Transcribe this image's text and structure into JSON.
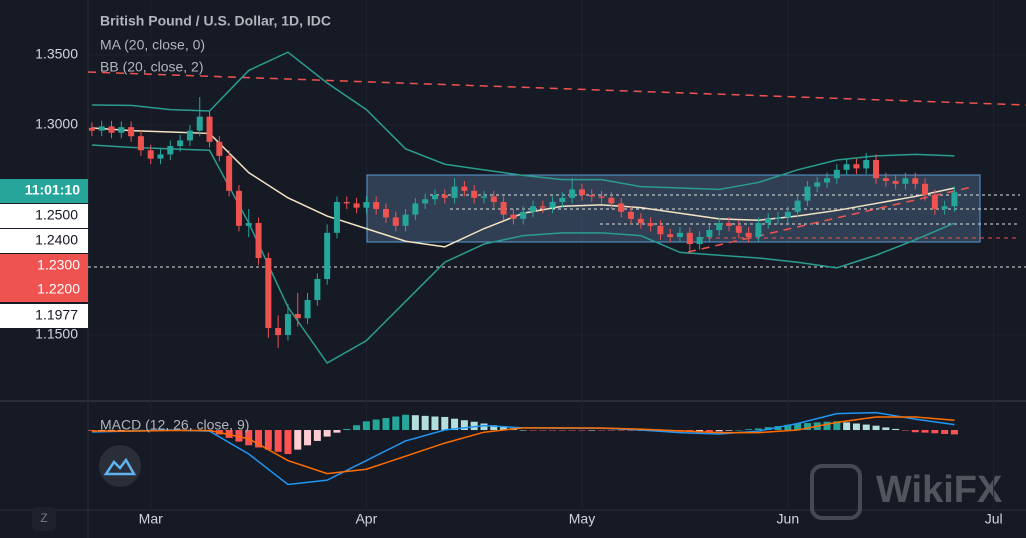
{
  "chart_data": {
    "type": "candlestick",
    "title": "British Pound / U.S. Dollar, 1D, IDC",
    "open": [
      1.298,
      1.296,
      1.299,
      1.2945,
      1.2985,
      1.292,
      1.282,
      1.276,
      1.279,
      1.285,
      1.289,
      1.296,
      1.306,
      1.288,
      1.278,
      1.253,
      1.228,
      1.23,
      1.205,
      1.155,
      1.15,
      1.165,
      1.162,
      1.175,
      1.19,
      1.223,
      1.245,
      1.244,
      1.241,
      1.245,
      1.24,
      1.234,
      1.228,
      1.236,
      1.244,
      1.247,
      1.25,
      1.248,
      1.256,
      1.253,
      1.248,
      1.249,
      1.245,
      1.236,
      1.233,
      1.238,
      1.242,
      1.241,
      1.245,
      1.248,
      1.254,
      1.25,
      1.249,
      1.248,
      1.244,
      1.238,
      1.233,
      1.23,
      1.228,
      1.222,
      1.22,
      1.223,
      1.215,
      1.22,
      1.225,
      1.23,
      1.228,
      1.223,
      1.22,
      1.23,
      1.233,
      1.234,
      1.238,
      1.246,
      1.256,
      1.259,
      1.262,
      1.268,
      1.272,
      1.269,
      1.275,
      1.262,
      1.26,
      1.258,
      1.262,
      1.258,
      1.25,
      1.24,
      1.242
    ],
    "high": [
      1.302,
      1.303,
      1.303,
      1.3025,
      1.3025,
      1.296,
      1.286,
      1.283,
      1.289,
      1.293,
      1.3,
      1.32,
      1.31,
      1.292,
      1.282,
      1.257,
      1.24,
      1.234,
      1.209,
      1.164,
      1.172,
      1.18,
      1.18,
      1.194,
      1.229,
      1.249,
      1.249,
      1.248,
      1.249,
      1.249,
      1.244,
      1.238,
      1.24,
      1.248,
      1.251,
      1.254,
      1.254,
      1.262,
      1.26,
      1.257,
      1.253,
      1.253,
      1.249,
      1.24,
      1.242,
      1.246,
      1.246,
      1.249,
      1.252,
      1.262,
      1.258,
      1.254,
      1.253,
      1.252,
      1.248,
      1.242,
      1.237,
      1.234,
      1.232,
      1.226,
      1.227,
      1.227,
      1.224,
      1.229,
      1.234,
      1.234,
      1.232,
      1.227,
      1.234,
      1.237,
      1.238,
      1.242,
      1.25,
      1.26,
      1.263,
      1.266,
      1.272,
      1.276,
      1.276,
      1.28,
      1.279,
      1.266,
      1.264,
      1.266,
      1.266,
      1.262,
      1.254,
      1.246,
      1.256
    ],
    "low": [
      1.292,
      1.292,
      1.2905,
      1.2905,
      1.288,
      1.278,
      1.272,
      1.272,
      1.275,
      1.281,
      1.285,
      1.292,
      1.284,
      1.274,
      1.249,
      1.224,
      1.22,
      1.2,
      1.148,
      1.1409,
      1.146,
      1.156,
      1.158,
      1.171,
      1.186,
      1.219,
      1.24,
      1.237,
      1.237,
      1.236,
      1.23,
      1.224,
      1.224,
      1.232,
      1.24,
      1.243,
      1.244,
      1.244,
      1.249,
      1.244,
      1.244,
      1.241,
      1.232,
      1.229,
      1.229,
      1.234,
      1.237,
      1.237,
      1.241,
      1.244,
      1.246,
      1.245,
      1.244,
      1.24,
      1.234,
      1.229,
      1.226,
      1.224,
      1.218,
      1.216,
      1.216,
      1.208,
      1.211,
      1.216,
      1.221,
      1.224,
      1.219,
      1.216,
      1.216,
      1.226,
      1.229,
      1.23,
      1.234,
      1.242,
      1.252,
      1.255,
      1.258,
      1.264,
      1.265,
      1.265,
      1.258,
      1.256,
      1.254,
      1.254,
      1.254,
      1.246,
      1.236,
      1.236,
      1.238
    ],
    "close": [
      1.296,
      1.299,
      1.2945,
      1.2985,
      1.292,
      1.282,
      1.276,
      1.279,
      1.285,
      1.289,
      1.296,
      1.306,
      1.288,
      1.278,
      1.253,
      1.228,
      1.23,
      1.205,
      1.155,
      1.15,
      1.165,
      1.162,
      1.175,
      1.19,
      1.223,
      1.245,
      1.244,
      1.241,
      1.245,
      1.24,
      1.234,
      1.228,
      1.236,
      1.244,
      1.247,
      1.25,
      1.248,
      1.256,
      1.253,
      1.248,
      1.249,
      1.245,
      1.236,
      1.233,
      1.238,
      1.242,
      1.241,
      1.245,
      1.248,
      1.254,
      1.25,
      1.249,
      1.248,
      1.244,
      1.238,
      1.233,
      1.23,
      1.228,
      1.222,
      1.22,
      1.223,
      1.215,
      1.22,
      1.225,
      1.23,
      1.228,
      1.223,
      1.22,
      1.23,
      1.233,
      1.234,
      1.238,
      1.246,
      1.256,
      1.259,
      1.262,
      1.268,
      1.272,
      1.269,
      1.275,
      1.262,
      1.26,
      1.258,
      1.262,
      1.258,
      1.25,
      1.24,
      1.242,
      1.252
    ],
    "up_color": "#26a69a",
    "down_color": "#ef5350",
    "xlim": [
      -0.4,
      95.3
    ],
    "xticks": [
      {
        "value": 6,
        "label": "Mar"
      },
      {
        "value": 28,
        "label": "Apr"
      },
      {
        "value": 50,
        "label": "May"
      },
      {
        "value": 71,
        "label": "Jun"
      },
      {
        "value": 92,
        "label": "Jul"
      }
    ],
    "ylim": [
      1.1036,
      1.3893
    ],
    "yticks": [
      {
        "value": 1.35,
        "label": "1.3500"
      },
      {
        "value": 1.3,
        "label": "1.3000"
      },
      {
        "value": 1.15,
        "label": "1.1500"
      }
    ],
    "ma": {
      "name": "MA (20, close, 0)",
      "color": "#f3e5c4",
      "x": [
        0,
        4,
        8,
        12,
        16,
        20,
        24,
        28,
        32,
        36,
        40,
        44,
        48,
        52,
        56,
        60,
        64,
        68,
        72,
        76,
        80,
        84,
        88
      ],
      "values": [
        1.2979,
        1.296,
        1.295,
        1.294,
        1.266,
        1.248,
        1.235,
        1.226,
        1.217,
        1.213,
        1.226,
        1.237,
        1.242,
        1.243,
        1.241,
        1.237,
        1.233,
        1.232,
        1.235,
        1.239,
        1.244,
        1.249,
        1.255
      ]
    },
    "bb": {
      "name": "BB (20, close, 2)",
      "color": "#2a9d8f",
      "x": [
        0,
        4,
        8,
        12,
        16,
        20,
        24,
        28,
        32,
        36,
        40,
        44,
        48,
        52,
        56,
        60,
        64,
        68,
        72,
        76,
        80,
        84,
        88
      ],
      "upper": [
        1.3143,
        1.314,
        1.311,
        1.31,
        1.339,
        1.352,
        1.33,
        1.311,
        1.283,
        1.272,
        1.268,
        1.264,
        1.261,
        1.261,
        1.256,
        1.255,
        1.254,
        1.259,
        1.268,
        1.275,
        1.278,
        1.279,
        1.278
      ],
      "lower": [
        1.2857,
        1.284,
        1.283,
        1.282,
        1.23,
        1.17,
        1.13,
        1.146,
        1.174,
        1.202,
        1.215,
        1.221,
        1.223,
        1.223,
        1.221,
        1.209,
        1.207,
        1.205,
        1.202,
        1.198,
        1.207,
        1.218,
        1.23
      ]
    },
    "macd": {
      "name": "MACD (12, 26, close, 9)",
      "ylim": [
        -0.0367,
        0.0124
      ],
      "histogram": [
        -0.0004,
        -0.0003,
        -0.0002,
        -0.0001,
        0.0,
        0.0001,
        0.0001,
        0.0002,
        0.0002,
        0.0001,
        -0.0001,
        -0.0002,
        -0.0003,
        -0.002,
        -0.0036,
        -0.0053,
        -0.007,
        -0.008,
        -0.009,
        -0.01,
        -0.011,
        -0.009,
        -0.007,
        -0.005,
        -0.003,
        -0.0012,
        0.0005,
        0.0022,
        0.004,
        0.0048,
        0.0055,
        0.0062,
        0.007,
        0.0068,
        0.0065,
        0.0062,
        0.006,
        0.0052,
        0.0045,
        0.0038,
        0.003,
        0.0022,
        0.0015,
        0.0008,
        0.0,
        -0.0001,
        -0.0001,
        -0.0002,
        -0.0002,
        -0.0002,
        -0.0002,
        -0.0001,
        -0.0001,
        -0.0002,
        -0.0002,
        -0.0003,
        -0.0004,
        -0.0005,
        -0.0006,
        -0.0007,
        -0.0008,
        -0.0008,
        -0.0007,
        -0.0007,
        -0.0006,
        -0.0003,
        0.0,
        0.0004,
        0.0007,
        0.0013,
        0.0018,
        0.0024,
        0.003,
        0.0032,
        0.0035,
        0.0038,
        0.004,
        0.0035,
        0.003,
        0.0025,
        0.002,
        0.0012,
        0.0005,
        -0.0002,
        -0.001,
        -0.0012,
        -0.0015,
        -0.0018,
        -0.002
      ],
      "x": [
        0,
        4,
        8,
        12,
        16,
        20,
        24,
        28,
        32,
        36,
        40,
        44,
        48,
        52,
        56,
        60,
        64,
        68,
        72,
        76,
        80,
        84,
        88
      ],
      "line": {
        "color": "#2196f3",
        "values": [
          -0.0009,
          -0.0005,
          0.0,
          -0.0005,
          -0.011,
          -0.025,
          -0.023,
          -0.014,
          -0.005,
          0.0,
          0.002,
          0.001,
          0.0008,
          0.0008,
          0.0,
          -0.0012,
          -0.0018,
          -0.0005,
          0.003,
          0.0075,
          0.008,
          0.005,
          0.0025
        ]
      },
      "signal": {
        "color": "#ff6d00",
        "values": [
          -0.0005,
          -0.0005,
          -0.0002,
          -0.0002,
          -0.004,
          -0.014,
          -0.02,
          -0.018,
          -0.012,
          -0.006,
          -0.001,
          0.001,
          0.001,
          0.0009,
          0.0004,
          -0.0004,
          -0.0012,
          -0.0012,
          0.0,
          0.0035,
          0.006,
          0.006,
          0.0045
        ]
      }
    },
    "price_badges": [
      {
        "label": "11:01:10",
        "color": "#26a69a"
      },
      {
        "label": "1.2500",
        "color": "#ffffff"
      },
      {
        "label": "1.2400",
        "color": "#ffffff"
      },
      {
        "label": "1.2300",
        "color": "#ef5350"
      },
      {
        "label": "1.2200",
        "color": "#ef5350"
      },
      {
        "label": "1.1977",
        "color": "#ffffff"
      }
    ]
  },
  "z_button": "Z",
  "watermark": "WikiFX"
}
